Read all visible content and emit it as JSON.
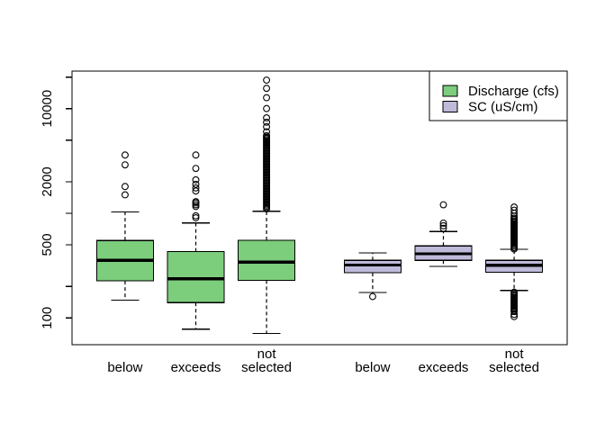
{
  "figure": {
    "background": "#ffffff"
  },
  "chart_data": {
    "type": "boxplot",
    "orientation": "vertical",
    "title": "",
    "xlabel": "",
    "ylabel": "",
    "y_scale": "log",
    "grid": false,
    "ylim": [
      55.5,
      22800
    ],
    "xlim": [
      0.25,
      7.25
    ],
    "frame_color": "#000000",
    "legend": {
      "position": "top-right",
      "items": [
        {
          "label": "Discharge (cfs)",
          "color": "#7ccd7c"
        },
        {
          "label": "SC (uS/cm)",
          "color": "#bebada"
        }
      ]
    },
    "y_axis": {
      "ticks": [
        {
          "value": 100,
          "label": "100"
        },
        {
          "value": 200,
          "label": ""
        },
        {
          "value": 500,
          "label": "500"
        },
        {
          "value": 1000,
          "label": ""
        },
        {
          "value": 2000,
          "label": "2000"
        },
        {
          "value": 5000,
          "label": ""
        },
        {
          "value": 10000,
          "label": "10000"
        },
        {
          "value": 20000,
          "label": ""
        }
      ]
    },
    "x_axis": {
      "categories": [
        {
          "position": 1,
          "lines": [
            "below"
          ]
        },
        {
          "position": 2,
          "lines": [
            "exceeds"
          ]
        },
        {
          "position": 3,
          "lines": [
            "not",
            "selected"
          ]
        },
        {
          "position": 4.5,
          "lines": [
            "below"
          ]
        },
        {
          "position": 5.5,
          "lines": [
            "exceeds"
          ]
        },
        {
          "position": 6.5,
          "lines": [
            "not",
            "selected"
          ]
        }
      ]
    },
    "boxes": [
      {
        "series": "Discharge (cfs)",
        "category": "below",
        "position": 1,
        "color": "#7ccd7c",
        "whisker_low": 148,
        "q1": 226,
        "median": 354,
        "q3": 550,
        "whisker_high": 1030,
        "outliers": [
          1500,
          1800,
          2900,
          3600
        ],
        "outlier_bands": []
      },
      {
        "series": "Discharge (cfs)",
        "category": "exceeds",
        "position": 2,
        "color": "#7ccd7c",
        "whisker_low": 78,
        "q1": 140,
        "median": 237,
        "q3": 430,
        "whisker_high": 808,
        "outliers": [
          905,
          945,
          1160,
          1205,
          1255,
          1290,
          1630,
          1745,
          1890,
          2085,
          2680,
          3600
        ],
        "outlier_bands": []
      },
      {
        "series": "Discharge (cfs)",
        "category": "not selected",
        "position": 3,
        "color": "#7ccd7c",
        "whisker_low": 71,
        "q1": 229,
        "median": 340,
        "q3": 552,
        "whisker_high": 1045,
        "outliers": [
          6000,
          6700,
          7400,
          8150,
          10000,
          12700,
          15600,
          18700
        ],
        "outlier_bands": [
          {
            "min": 1100,
            "max": 5500,
            "n": 55
          }
        ]
      },
      {
        "series": "SC (uS/cm)",
        "category": "below",
        "position": 4.5,
        "color": "#bebada",
        "whisker_low": 175,
        "q1": 270,
        "median": 320,
        "q3": 355,
        "whisker_high": 418,
        "outliers": [
          160
        ],
        "outlier_bands": []
      },
      {
        "series": "SC (uS/cm)",
        "category": "exceeds",
        "position": 5.5,
        "color": "#bebada",
        "whisker_low": 311,
        "q1": 355,
        "median": 410,
        "q3": 487,
        "whisker_high": 669,
        "outliers": [
          718,
          760,
          805,
          1205
        ],
        "outlier_bands": []
      },
      {
        "series": "SC (uS/cm)",
        "category": "not selected",
        "position": 6.5,
        "color": "#bebada",
        "whisker_low": 183,
        "q1": 273,
        "median": 318,
        "q3": 355,
        "whisker_high": 452,
        "outliers": [
          940,
          1000,
          1070,
          1145,
          108,
          103
        ],
        "outlier_bands": [
          {
            "min": 455,
            "max": 900,
            "n": 24
          },
          {
            "min": 115,
            "max": 176,
            "n": 16
          }
        ]
      }
    ]
  }
}
